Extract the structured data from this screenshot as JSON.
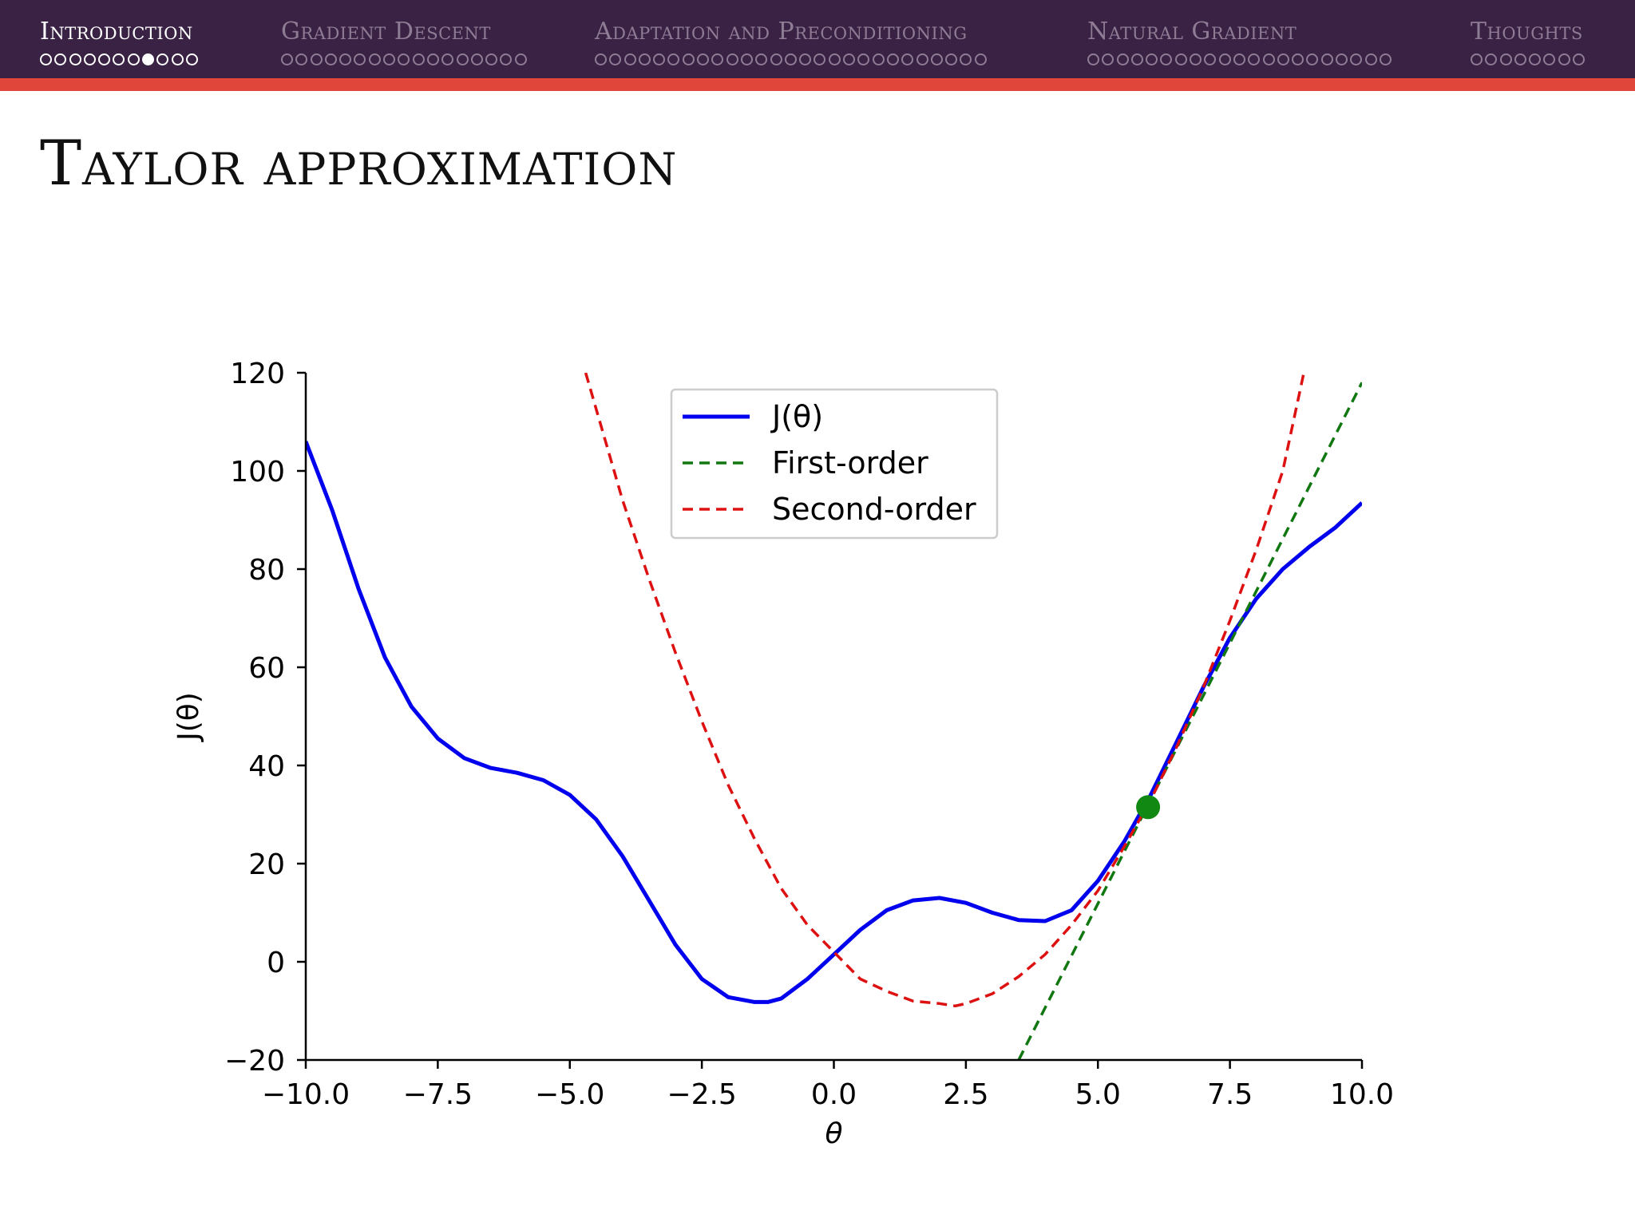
{
  "nav": {
    "sections": [
      {
        "title": "Introduction",
        "dots": 11,
        "current": 7,
        "active": true
      },
      {
        "title": "Gradient Descent",
        "dots": 17,
        "current": -1,
        "active": false
      },
      {
        "title": "Adaptation and Preconditioning",
        "dots": 27,
        "current": -1,
        "active": false
      },
      {
        "title": "Natural Gradient",
        "dots": 21,
        "current": -1,
        "active": false
      },
      {
        "title": "Thoughts",
        "dots": 8,
        "current": -1,
        "active": false
      }
    ],
    "colors": {
      "background": "#3a2244",
      "accent": "#e0473a",
      "active_text": "#ffffff",
      "inactive_text": "#8e7c95"
    }
  },
  "slide": {
    "title": "Taylor approximation"
  },
  "chart_data": {
    "type": "line",
    "xlabel": "θ",
    "ylabel": "J(θ)",
    "xlim": [
      -10.0,
      10.0
    ],
    "ylim": [
      -20,
      120
    ],
    "xticks": [
      "−10.0",
      "−7.5",
      "−5.0",
      "−2.5",
      "0.0",
      "2.5",
      "5.0",
      "7.5",
      "10.0"
    ],
    "xtick_values": [
      -10,
      -7.5,
      -5,
      -2.5,
      0,
      2.5,
      5,
      7.5,
      10
    ],
    "yticks": [
      "−20",
      "0",
      "20",
      "40",
      "60",
      "80",
      "100",
      "120"
    ],
    "ytick_values": [
      -20,
      0,
      20,
      40,
      60,
      80,
      100,
      120
    ],
    "legend": {
      "position": "upper-center",
      "entries": [
        "J(θ)",
        "First-order",
        "Second-order"
      ]
    },
    "grid": false,
    "series": [
      {
        "name": "J(θ)",
        "color": "#0000ee",
        "style": "solid",
        "x": [
          -10,
          -9.5,
          -9,
          -8.5,
          -8,
          -7.5,
          -7,
          -6.5,
          -6,
          -5.5,
          -5,
          -4.5,
          -4,
          -3.5,
          -3,
          -2.5,
          -2,
          -1.5,
          -1.25,
          -1,
          -0.5,
          0,
          0.5,
          1,
          1.5,
          2,
          2.5,
          3,
          3.5,
          4,
          4.5,
          5,
          5.5,
          6,
          6.5,
          7,
          7.5,
          8,
          8.5,
          9,
          9.5,
          10
        ],
        "y": [
          106,
          92,
          76,
          62,
          52,
          45.5,
          41.5,
          39.5,
          38.5,
          37,
          34,
          29,
          21.5,
          12.5,
          3.5,
          -3.5,
          -7.2,
          -8.2,
          -8.2,
          -7.5,
          -3.5,
          1.5,
          6.5,
          10.5,
          12.5,
          13,
          12,
          10,
          8.5,
          8.3,
          10.5,
          16.5,
          24.5,
          34,
          45,
          56,
          66,
          74,
          80,
          84.5,
          88.5,
          93.5
        ]
      },
      {
        "name": "First-order",
        "color": "#117711",
        "style": "dashed",
        "x": [
          3.5,
          10.0
        ],
        "y": [
          -20,
          118
        ]
      },
      {
        "name": "Second-order",
        "color": "#dd1111",
        "style": "dashed",
        "x": [
          -4.7,
          -4.0,
          -3.5,
          -3.0,
          -2.5,
          -2.0,
          -1.5,
          -1.0,
          -0.5,
          0.0,
          0.5,
          1.0,
          1.5,
          2.0,
          2.3,
          2.5,
          3.0,
          3.5,
          4.0,
          4.5,
          5.0,
          5.5,
          6.0,
          6.5,
          7.0,
          7.5,
          8.0,
          8.5,
          8.9
        ],
        "y": [
          120,
          94,
          78,
          63,
          49,
          36,
          25,
          15,
          7.5,
          2,
          -3.5,
          -6,
          -8,
          -8.5,
          -9,
          -8.5,
          -6.5,
          -3,
          1.5,
          7.5,
          14.5,
          23.5,
          33,
          44,
          56,
          69.5,
          84,
          100,
          120
        ]
      }
    ],
    "highlight_point": {
      "x": 5.95,
      "y": 31.5,
      "color": "#118811"
    }
  }
}
